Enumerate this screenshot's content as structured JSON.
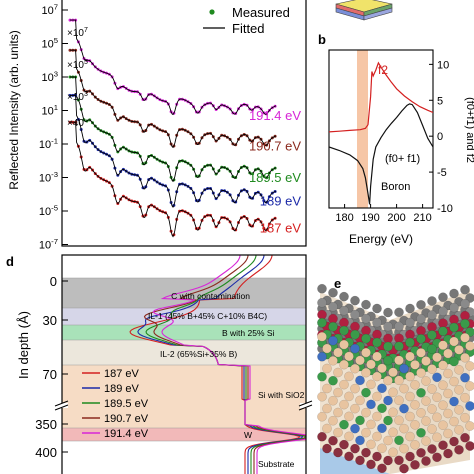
{
  "panel_a": {
    "ylabel": "Reflected Intensity (arb. units)",
    "yticks": [
      "10^7",
      "10^5",
      "10^3",
      "10^1",
      "10^-1",
      "10^-3",
      "10^-5",
      "10^-7"
    ],
    "legend": {
      "measured": "Measured",
      "fitted": "Fitted"
    },
    "multipliers": [
      "×10^7",
      "×10^5",
      "×10^3",
      "×40"
    ],
    "curves": [
      {
        "label": "191.4 eV",
        "color": "#d726d7",
        "baseline": 1.5,
        "decades": [
          1.2,
          5.8
        ]
      },
      {
        "label": "190.7 eV",
        "color": "#8b2a1f",
        "baseline": -0.3,
        "decades": [
          -0.6,
          4.0
        ]
      },
      {
        "label": "189.5 eV",
        "color": "#1f8a1f",
        "baseline": -2.2,
        "decades": [
          -2.5,
          2.4
        ]
      },
      {
        "label": "189 eV",
        "color": "#1c2aa8",
        "baseline": -3.6,
        "decades": [
          -3.9,
          1.3
        ]
      },
      {
        "label": "187 eV",
        "color": "#d42020",
        "baseline": -5.2,
        "decades": [
          -5.5,
          -0.3
        ]
      }
    ]
  },
  "panel_b": {
    "letter": "b",
    "xlabel": "Energy (eV)",
    "ylabel": "(f0+f1) and f2",
    "xticks": [
      "180",
      "190",
      "200",
      "210"
    ],
    "yticks": [
      "10",
      "5",
      "0",
      "-5",
      "-10"
    ],
    "label_f2": "f2",
    "label_f0f1": "(f0+ f1)",
    "element": "Boron",
    "chart_data": {
      "type": "line",
      "xlim": [
        174,
        214
      ],
      "ylim": [
        -10,
        12
      ],
      "series": [
        {
          "name": "f2",
          "color": "#d42020",
          "x": [
            174,
            178,
            182,
            186,
            188,
            189,
            190,
            190.5,
            191,
            192,
            193,
            194,
            196,
            198,
            200,
            203,
            206,
            209,
            212,
            214
          ],
          "y": [
            0.6,
            0.7,
            0.8,
            0.9,
            1.1,
            1.6,
            5.5,
            9.0,
            8.4,
            9.2,
            10.2,
            9.6,
            8.5,
            7.5,
            6.6,
            5.6,
            4.8,
            4.1,
            3.6,
            3.3
          ]
        },
        {
          "name": "(f0+ f1)",
          "color": "#111111",
          "x": [
            174,
            178,
            182,
            185,
            187,
            188,
            189,
            189.6,
            190,
            191,
            192,
            194,
            196,
            198,
            200,
            202,
            204,
            205,
            206,
            208,
            210,
            212,
            214
          ],
          "y": [
            -1.5,
            -2.0,
            -2.6,
            -3.4,
            -4.5,
            -5.8,
            -8.0,
            -9.5,
            -7.0,
            -3.2,
            -1.5,
            -0.2,
            0.9,
            1.8,
            2.6,
            3.5,
            4.3,
            4.5,
            4.4,
            3.3,
            1.5,
            -0.3,
            -1.5
          ]
        }
      ]
    }
  },
  "panel_d": {
    "letter": "d",
    "ylabel": "In depth (Å)",
    "yticks": [
      "0",
      "30",
      "70",
      "350",
      "400"
    ],
    "layers": [
      {
        "label": "C with contamination",
        "color": "#bdbdbd"
      },
      {
        "label": "IL-1 (45% B+45% C+10% B4C)",
        "color": "#d6d6e8"
      },
      {
        "label": "B with 25% Si",
        "color": "#a9e2b9"
      },
      {
        "label": "IL-2 (65%Si+35% B)",
        "color": "#ece7dc"
      },
      {
        "label": "Si with SiO2",
        "color": "#f6dcc5"
      },
      {
        "label": "W",
        "color": "#f2b9b9"
      },
      {
        "label": "Substrate",
        "color": "#ffffff"
      }
    ],
    "legend": [
      {
        "label": "187 eV",
        "color": "#d42020"
      },
      {
        "label": "189 eV",
        "color": "#1c2aa8"
      },
      {
        "label": "189.5 eV",
        "color": "#1f8a1f"
      },
      {
        "label": "190.7 eV",
        "color": "#8b2a1f"
      },
      {
        "label": "191.4 eV",
        "color": "#d726d7"
      }
    ]
  },
  "panel_e": {
    "letter": "e"
  }
}
